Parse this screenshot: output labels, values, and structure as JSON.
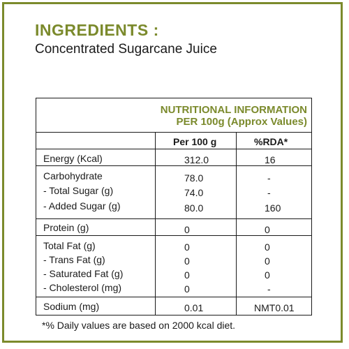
{
  "ingredients": {
    "heading": "INGREDIENTS :",
    "text": "Concentrated Sugarcane Juice"
  },
  "nutrition": {
    "header_line1": "NUTRITIONAL INFORMATION",
    "header_line2": "PER 100g (Approx Values)",
    "col_per100": "Per 100 g",
    "col_rda": "%RDA*",
    "rows": [
      {
        "label": "Energy (Kcal)",
        "value": "312.0",
        "rda": "16"
      },
      {
        "label": "Carbohydrate",
        "value": "78.0",
        "rda": "-"
      },
      {
        "label": "- Total Sugar (g)",
        "value": "74.0",
        "rda": "-"
      },
      {
        "label": "- Added Sugar (g)",
        "value": "80.0",
        "rda": "160"
      },
      {
        "label": "Protein (g)",
        "value": "0",
        "rda": "0"
      },
      {
        "label": "Total Fat (g)",
        "value": "0",
        "rda": "0"
      },
      {
        "label": "- Trans Fat (g)",
        "value": "0",
        "rda": "0"
      },
      {
        "label": "- Saturated Fat (g)",
        "value": "0",
        "rda": "0"
      },
      {
        "label": "- Cholesterol (mg)",
        "value": "0",
        "rda": "-"
      },
      {
        "label": "Sodium (mg)",
        "value": "0.01",
        "rda": "NMT0.01"
      }
    ]
  },
  "footnote": "*% Daily values are based on 2000 kcal diet.",
  "colors": {
    "accent": "#7b8a2c",
    "text": "#1a1a1a"
  }
}
